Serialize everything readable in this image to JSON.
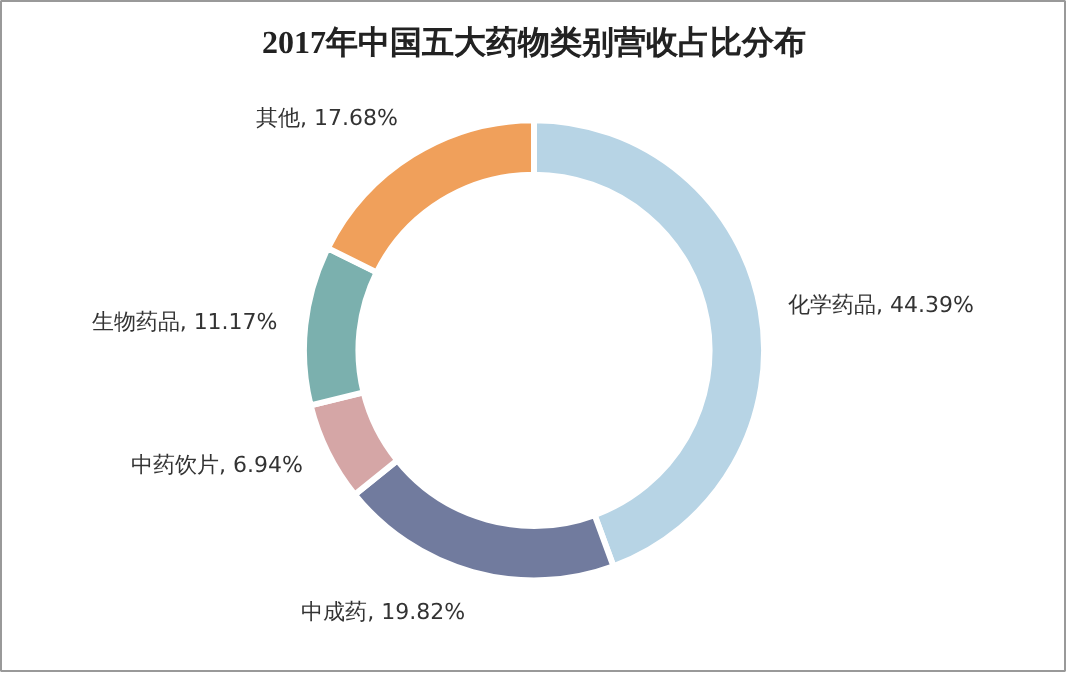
{
  "chart_data": {
    "type": "donut",
    "title": "2017年中国五大药物类别营收占比分布",
    "categories": [
      "化学药品",
      "中成药",
      "中药饮片",
      "生物药品",
      "其他"
    ],
    "values": [
      44.39,
      19.82,
      6.94,
      11.17,
      17.68
    ],
    "value_labels": [
      "44.39%",
      "19.82%",
      "6.94%",
      "11.17%",
      "17.68%"
    ],
    "colors": [
      "#b7d4e5",
      "#717b9e",
      "#d5a6a6",
      "#7bb0ae",
      "#f0a05b"
    ]
  }
}
